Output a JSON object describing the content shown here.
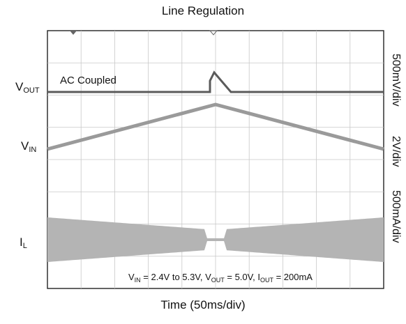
{
  "chart_data": {
    "type": "line",
    "title": "Line Regulation",
    "xlabel": "Time (50ms/div)",
    "channels": [
      {
        "label_main": "V",
        "label_sub": "OUT",
        "annotation": "AC Coupled",
        "scale": "500mV/div"
      },
      {
        "label_main": "V",
        "label_sub": "IN",
        "scale": "2V/div"
      },
      {
        "label_main": "I",
        "label_sub": "L",
        "scale": "500mA/div"
      }
    ],
    "conditions": {
      "vin_main": "V",
      "vin_sub": "IN",
      "vin_val": " = 2.4V to 5.3V, ",
      "vout_main": "V",
      "vout_sub": "OUT",
      "vout_val": " = 5.0V, ",
      "iout_main": "I",
      "iout_sub": "OUT",
      "iout_val": " = 200mA"
    },
    "divisions": {
      "x": 10,
      "y": 8
    },
    "grid": true,
    "colors": {
      "vout": "#5a5a5a",
      "vin": "#9a9a9a",
      "il": "#b4b4b4",
      "grid": "#c8c8c8"
    }
  }
}
